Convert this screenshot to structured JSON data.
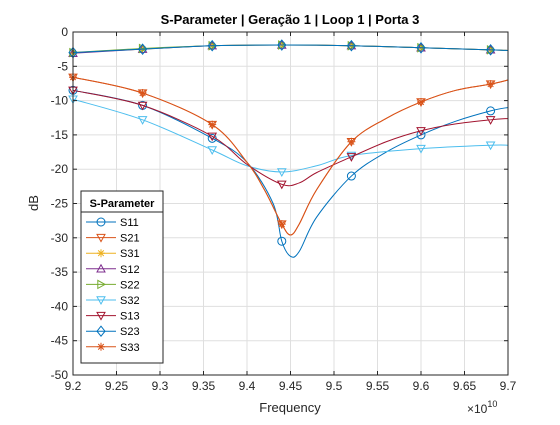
{
  "chart_data": {
    "type": "line",
    "title": "S-Parameter  |  Geração 1  |  Loop 1  |  Porta 3",
    "xlabel": "Frequency",
    "ylabel": "dB",
    "x_exponent_label": "×10",
    "x_exponent_power": "10",
    "xlim": [
      9.2,
      9.7
    ],
    "ylim": [
      -50,
      0
    ],
    "x_ticks": [
      "9.2",
      "9.25",
      "9.3",
      "9.35",
      "9.4",
      "9.45",
      "9.5",
      "9.55",
      "9.6",
      "9.65",
      "9.7"
    ],
    "y_ticks": [
      "0",
      "-5",
      "-10",
      "-15",
      "-20",
      "-25",
      "-30",
      "-35",
      "-40",
      "-45",
      "-50"
    ],
    "grid": true,
    "legend": {
      "title": "S-Parameter",
      "placement": "bottom-left"
    },
    "series": [
      {
        "name": "S11",
        "color": "#0072BD",
        "marker": "circle",
        "x": [
          9.2,
          9.28,
          9.36,
          9.4,
          9.43,
          9.44,
          9.45,
          9.46,
          9.48,
          9.52,
          9.56,
          9.6,
          9.64,
          9.68,
          9.7
        ],
        "y": [
          -8.5,
          -10.7,
          -15.5,
          -19,
          -25,
          -30.5,
          -32.7,
          -32,
          -27,
          -21,
          -17.5,
          -15,
          -13,
          -11.5,
          -11
        ],
        "marker_x": [
          9.2,
          9.28,
          9.36,
          9.44,
          9.52,
          9.6,
          9.68
        ],
        "marker_y": [
          -8.5,
          -10.7,
          -15.5,
          -30.5,
          -21,
          -15,
          -11.5
        ]
      },
      {
        "name": "S21",
        "color": "#D95319",
        "marker": "triangle-down",
        "x": [
          9.2,
          9.28,
          9.36,
          9.4,
          9.42,
          9.44,
          9.45,
          9.46,
          9.48,
          9.52,
          9.56,
          9.6,
          9.64,
          9.68,
          9.7
        ],
        "y": [
          -6.6,
          -8.9,
          -13.5,
          -19,
          -23,
          -28,
          -29.6,
          -28,
          -23,
          -16,
          -12.6,
          -10.2,
          -8.5,
          -7.6,
          -7
        ],
        "marker_x": [
          9.2,
          9.28,
          9.36,
          9.44,
          9.52,
          9.6,
          9.68
        ],
        "marker_y": [
          -6.6,
          -8.9,
          -13.5,
          -28,
          -16,
          -10.2,
          -7.6
        ]
      },
      {
        "name": "S31",
        "color": "#EDB120",
        "marker": "star",
        "x": [
          9.2,
          9.28,
          9.36,
          9.44,
          9.52,
          9.6,
          9.68,
          9.7
        ],
        "y": [
          -3.0,
          -2.5,
          -2.0,
          -1.9,
          -2.0,
          -2.3,
          -2.6,
          -2.7
        ],
        "marker_x": [
          9.2,
          9.28,
          9.36,
          9.44,
          9.52,
          9.6,
          9.68
        ],
        "marker_y": [
          -3.0,
          -2.5,
          -2.0,
          -1.9,
          -2.0,
          -2.3,
          -2.6
        ]
      },
      {
        "name": "S12",
        "color": "#7E2F8E",
        "marker": "triangle-up",
        "x": [
          9.2,
          9.28,
          9.36,
          9.44,
          9.52,
          9.6,
          9.68,
          9.7
        ],
        "y": [
          -3.1,
          -2.5,
          -2.0,
          -1.9,
          -2.0,
          -2.3,
          -2.6,
          -2.7
        ],
        "marker_x": [
          9.2,
          9.28,
          9.36,
          9.44,
          9.52,
          9.6,
          9.68
        ],
        "marker_y": [
          -3.1,
          -2.5,
          -2.0,
          -1.9,
          -2.0,
          -2.3,
          -2.6
        ]
      },
      {
        "name": "S22",
        "color": "#77AC30",
        "marker": "triangle-right",
        "x": [
          9.2,
          9.28,
          9.36,
          9.44,
          9.52,
          9.6,
          9.68,
          9.7
        ],
        "y": [
          -3.0,
          -2.4,
          -2.0,
          -1.9,
          -2.0,
          -2.3,
          -2.6,
          -2.7
        ],
        "marker_x": [
          9.2,
          9.28,
          9.36,
          9.44,
          9.52,
          9.6,
          9.68
        ],
        "marker_y": [
          -3.0,
          -2.4,
          -2.0,
          -1.9,
          -2.0,
          -2.3,
          -2.6
        ]
      },
      {
        "name": "S32",
        "color": "#4DBEEE",
        "marker": "triangle-down",
        "x": [
          9.2,
          9.28,
          9.36,
          9.4,
          9.44,
          9.48,
          9.52,
          9.6,
          9.68,
          9.7
        ],
        "y": [
          -9.8,
          -12.8,
          -17.2,
          -19.5,
          -20.4,
          -19.5,
          -18.0,
          -17.0,
          -16.5,
          -16.5
        ],
        "marker_x": [
          9.2,
          9.28,
          9.36,
          9.44,
          9.52,
          9.6,
          9.68
        ],
        "marker_y": [
          -9.8,
          -12.8,
          -17.2,
          -20.4,
          -18.0,
          -17.0,
          -16.5
        ]
      },
      {
        "name": "S13",
        "color": "#A2142F",
        "marker": "triangle-down",
        "x": [
          9.2,
          9.28,
          9.36,
          9.4,
          9.44,
          9.46,
          9.48,
          9.52,
          9.56,
          9.6,
          9.64,
          9.68,
          9.7
        ],
        "y": [
          -8.5,
          -10.7,
          -15.2,
          -19.3,
          -22.2,
          -22.0,
          -20.5,
          -18.2,
          -16.0,
          -14.4,
          -13.4,
          -12.8,
          -12.6
        ],
        "marker_x": [
          9.2,
          9.28,
          9.36,
          9.44,
          9.52,
          9.6,
          9.68
        ],
        "marker_y": [
          -8.5,
          -10.7,
          -15.2,
          -22.2,
          -18.2,
          -14.4,
          -12.8
        ]
      },
      {
        "name": "S23",
        "color": "#0072BD",
        "marker": "diamond",
        "x": [
          9.2,
          9.28,
          9.36,
          9.44,
          9.52,
          9.6,
          9.68,
          9.7
        ],
        "y": [
          -3.0,
          -2.5,
          -2.0,
          -1.9,
          -2.0,
          -2.3,
          -2.6,
          -2.7
        ],
        "marker_x": [
          9.2,
          9.28,
          9.36,
          9.44,
          9.52,
          9.6,
          9.68
        ],
        "marker_y": [
          -3.0,
          -2.5,
          -2.0,
          -1.9,
          -2.0,
          -2.3,
          -2.6
        ]
      },
      {
        "name": "S33",
        "color": "#D95319",
        "marker": "asterisk",
        "x": [
          9.2,
          9.28,
          9.36,
          9.4,
          9.42,
          9.44,
          9.45,
          9.46,
          9.48,
          9.52,
          9.56,
          9.6,
          9.64,
          9.68,
          9.7
        ],
        "y": [
          -6.6,
          -8.9,
          -13.5,
          -19,
          -23,
          -28,
          -29.6,
          -28,
          -23,
          -16,
          -12.6,
          -10.2,
          -8.5,
          -7.6,
          -7
        ],
        "marker_x": [
          9.2,
          9.28,
          9.36,
          9.44,
          9.52,
          9.6,
          9.68
        ],
        "marker_y": [
          -6.6,
          -8.9,
          -13.5,
          -28,
          -16,
          -10.2,
          -7.6
        ]
      }
    ]
  }
}
